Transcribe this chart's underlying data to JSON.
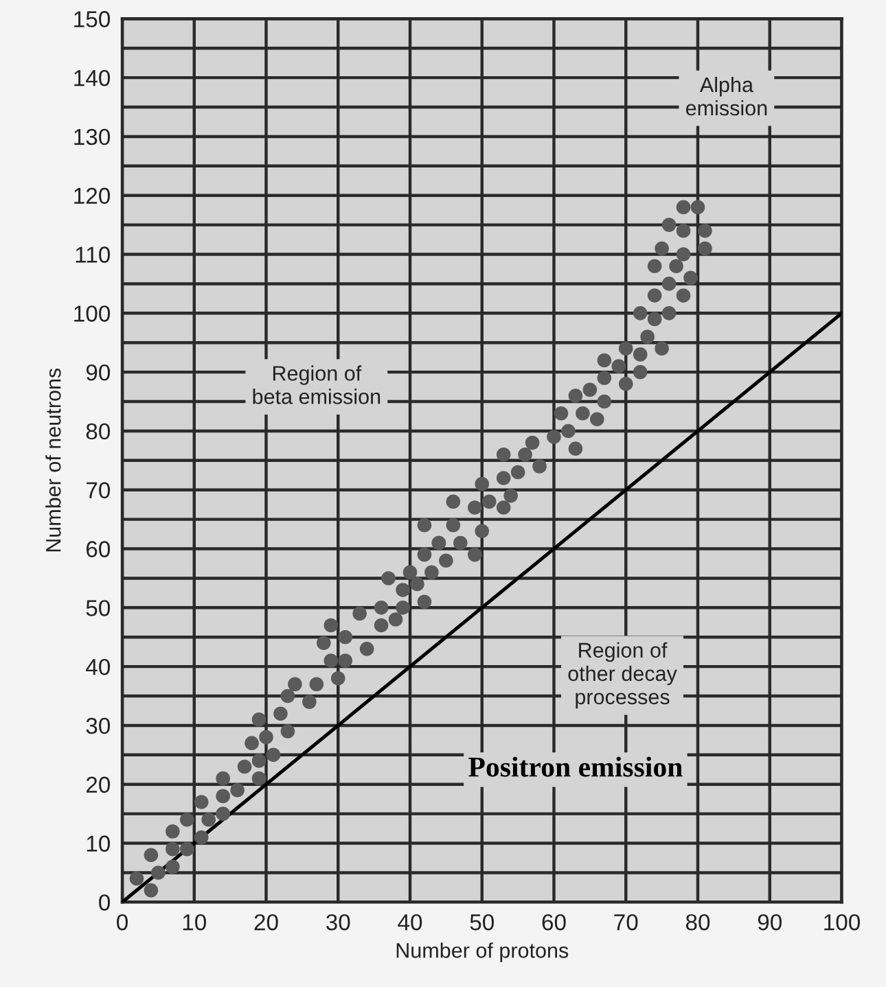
{
  "chart_data": {
    "type": "scatter",
    "xlabel": "Number of protons",
    "ylabel": "Number of neutrons",
    "xlim": [
      0,
      100
    ],
    "ylim": [
      0,
      150
    ],
    "xticks": [
      0,
      10,
      20,
      30,
      40,
      50,
      60,
      70,
      80,
      90,
      100
    ],
    "yticks": [
      0,
      {
        "value": 5,
        "label": null
      },
      10,
      {
        "value": 15,
        "label": null
      },
      20,
      {
        "value": 25,
        "label": null
      },
      30,
      {
        "value": 35,
        "label": null
      },
      40,
      {
        "value": 45,
        "label": null
      },
      50,
      {
        "value": 55,
        "label": null
      },
      60,
      {
        "value": 65,
        "label": null
      },
      70,
      {
        "value": 75,
        "label": null
      },
      80,
      {
        "value": 85,
        "label": null
      },
      90,
      {
        "value": 95,
        "label": null
      },
      100,
      {
        "value": 105,
        "label": null
      },
      110,
      {
        "value": 115,
        "label": null
      },
      120,
      {
        "value": 125,
        "label": null
      },
      130,
      {
        "value": 135,
        "label": null
      },
      140,
      {
        "value": 145,
        "label": null
      },
      150
    ],
    "grid": true,
    "legend": false,
    "series": [
      {
        "marker": "circle",
        "color": "#5a5a5a",
        "x": [
          4,
          2,
          5,
          7,
          4,
          7,
          9,
          7,
          11,
          9,
          12,
          11,
          14,
          14,
          16,
          14,
          19,
          17,
          19,
          21,
          18,
          20,
          23,
          19,
          22,
          23,
          24,
          26,
          27,
          30,
          29,
          31,
          28,
          31,
          34,
          29,
          33,
          36,
          36,
          38,
          39,
          42,
          39,
          41,
          37,
          40,
          43,
          45,
          49,
          42,
          44,
          44,
          47,
          50,
          42,
          46,
          53,
          46,
          49,
          51,
          54,
          50,
          53,
          55,
          58,
          53,
          56,
          57,
          60,
          63,
          62,
          66,
          61,
          64,
          63,
          65,
          67,
          67,
          70,
          69,
          72,
          67,
          70,
          72,
          75,
          73,
          74,
          72,
          76,
          74,
          78,
          76,
          79,
          74,
          77,
          75,
          78,
          81,
          76,
          78,
          81,
          78,
          80
        ],
        "values": [
          2,
          4,
          5,
          6,
          8,
          9,
          9,
          12,
          11,
          14,
          14,
          17,
          15,
          18,
          19,
          21,
          21,
          23,
          24,
          25,
          27,
          28,
          29,
          31,
          32,
          35,
          37,
          34,
          37,
          38,
          41,
          41,
          44,
          45,
          43,
          47,
          49,
          47,
          50,
          48,
          50,
          51,
          53,
          54,
          55,
          56,
          56,
          58,
          59,
          59,
          61,
          61,
          61,
          63,
          64,
          64,
          67,
          68,
          67,
          68,
          69,
          71,
          72,
          73,
          74,
          76,
          76,
          78,
          79,
          77,
          80,
          82,
          83,
          83,
          86,
          87,
          85,
          89,
          88,
          91,
          90,
          92,
          94,
          93,
          94,
          96,
          99,
          100,
          100,
          103,
          103,
          105,
          106,
          108,
          108,
          111,
          110,
          111,
          115,
          114,
          114,
          118,
          118
        ]
      },
      {
        "type": "line",
        "color": "#000000",
        "x": [
          0,
          100
        ],
        "values": [
          0,
          100
        ]
      }
    ],
    "annotations": [
      "Alpha\nemission",
      "Region of\nbeta emission",
      "Region of\nother decay\nprocesses",
      "Positron emission"
    ]
  }
}
